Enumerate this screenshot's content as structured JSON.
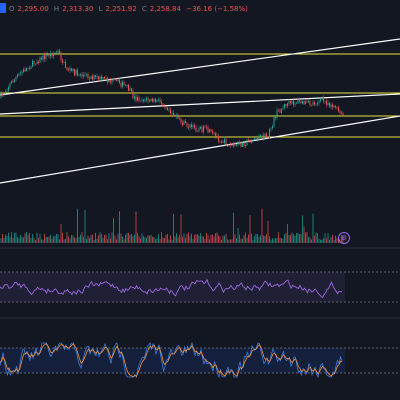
{
  "legend": {
    "open_label": "O",
    "open": "2,295.00",
    "high_label": "H",
    "high": "2,313.30",
    "low_label": "L",
    "low": "2,251.92",
    "close_label": "C",
    "close": "2,258.84",
    "change": "−36.16 (−1.58%)"
  },
  "colors": {
    "background": "#131722",
    "bull": "#26a69a",
    "bear": "#ef5350",
    "hline": "#e8e23a",
    "trendline": "#ffffff",
    "rsi": "#9c6ade",
    "osc_fast": "#3f7be0",
    "osc_slow": "#f5923e",
    "text_up": "#26a69a",
    "text_down": "#ef5350"
  },
  "icons": {
    "symbol_badge": "symbol-badge-icon",
    "volume_pane": "indicator-settings-icon"
  }
}
